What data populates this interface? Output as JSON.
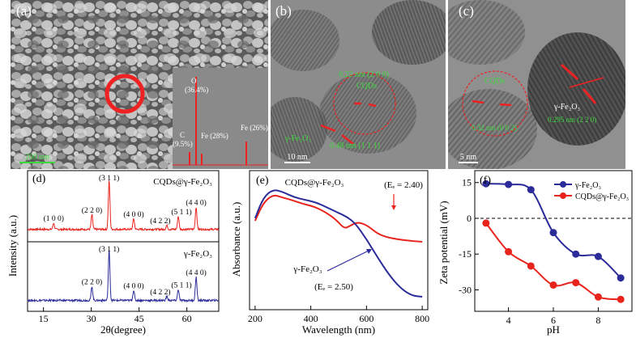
{
  "panels": {
    "a": {
      "label": "(a)",
      "scale_bar": "200 nm",
      "eds": [
        {
          "element": "O",
          "percent": "(36.4%)"
        },
        {
          "element": "C",
          "percent": "(9.5%)"
        },
        {
          "element": "Fe",
          "percent": "(28%)"
        },
        {
          "element": "Fe",
          "percent": "(26%)"
        }
      ]
    },
    "b": {
      "label": "(b)",
      "scale_bar": "10 nm",
      "annotations": [
        "0.22 nm (2 0 0)",
        "CQDs",
        "γ-Fe₂O₃",
        "0.48 nm (1 1 1)"
      ]
    },
    "c": {
      "label": "(c)",
      "scale_bar": "5 nm",
      "annotations": [
        "CQDs",
        "γ-Fe₂O₃",
        "0.295 nm (2 2 0)",
        "0.32 nm (0 0 2)"
      ]
    }
  },
  "chart_data": [
    {
      "panel": "(d)",
      "type": "line",
      "ylabel": "Intensity (a.u.)",
      "xlabel": "2θ(degree)",
      "xticks": [
        15,
        30,
        45,
        60
      ],
      "xlim": [
        10,
        70
      ],
      "series": [
        {
          "name": "CQDs@γ-Fe₂O₃",
          "color": "#e8231c",
          "peaks": [
            {
              "x": 18.2,
              "h": 0.13,
              "label": "(1 0 0)"
            },
            {
              "x": 30.2,
              "h": 0.3,
              "label": "(2 2 0)"
            },
            {
              "x": 35.6,
              "h": 1.0,
              "label": "(3 1 1)"
            },
            {
              "x": 43.3,
              "h": 0.22,
              "label": "(4 0 0)"
            },
            {
              "x": 53.7,
              "h": 0.08,
              "label": "(4 2 2)"
            },
            {
              "x": 57.3,
              "h": 0.27,
              "label": "(5 1 1)"
            },
            {
              "x": 62.9,
              "h": 0.46,
              "label": "(4 4 0)"
            }
          ]
        },
        {
          "name": "γ-Fe₂O₃",
          "color": "#2b2b9a",
          "peaks": [
            {
              "x": 30.2,
              "h": 0.28,
              "label": "(2 2 0)"
            },
            {
              "x": 35.6,
              "h": 1.0,
              "label": "(3 1 1)"
            },
            {
              "x": 43.3,
              "h": 0.2,
              "label": "(4 0 0)"
            },
            {
              "x": 53.7,
              "h": 0.08,
              "label": "(4 2 2)"
            },
            {
              "x": 57.3,
              "h": 0.22,
              "label": "(5 1 1)"
            },
            {
              "x": 62.9,
              "h": 0.47,
              "label": "(4 4 0)"
            }
          ]
        }
      ]
    },
    {
      "panel": "(e)",
      "type": "line",
      "ylabel": "Absorbance (a.u.)",
      "xlabel": "Wavelength (nm)",
      "xticks": [
        200,
        400,
        600,
        800
      ],
      "xlim": [
        180,
        820
      ],
      "series": [
        {
          "name": "CQDs@γ-Fe₂O₃",
          "eg": "(Eₑ = 2.40)",
          "color": "#e8231c",
          "points": [
            [
              200,
              0.66
            ],
            [
              230,
              0.8
            ],
            [
              265,
              0.86
            ],
            [
              295,
              0.84
            ],
            [
              330,
              0.82
            ],
            [
              370,
              0.79
            ],
            [
              410,
              0.77
            ],
            [
              450,
              0.73
            ],
            [
              490,
              0.67
            ],
            [
              520,
              0.6
            ],
            [
              540,
              0.62
            ],
            [
              565,
              0.65
            ],
            [
              600,
              0.63
            ],
            [
              640,
              0.56
            ],
            [
              680,
              0.53
            ],
            [
              740,
              0.51
            ],
            [
              800,
              0.5
            ]
          ]
        },
        {
          "name": "γ-Fe₂O₃",
          "eg": "(Eₑ = 2.50)",
          "color": "#2b2b9a",
          "points": [
            [
              200,
              0.68
            ],
            [
              230,
              0.84
            ],
            [
              265,
              0.9
            ],
            [
              300,
              0.88
            ],
            [
              340,
              0.84
            ],
            [
              380,
              0.82
            ],
            [
              420,
              0.8
            ],
            [
              460,
              0.76
            ],
            [
              500,
              0.72
            ],
            [
              530,
              0.69
            ],
            [
              560,
              0.64
            ],
            [
              600,
              0.52
            ],
            [
              640,
              0.38
            ],
            [
              680,
              0.25
            ],
            [
              720,
              0.15
            ],
            [
              760,
              0.09
            ],
            [
              800,
              0.08
            ]
          ]
        }
      ]
    },
    {
      "panel": "(f)",
      "type": "line",
      "ylabel": "Zeta potential (mV)",
      "xlabel": "pH",
      "xticks": [
        4,
        6,
        8
      ],
      "yticks": [
        15,
        0,
        -15,
        -30
      ],
      "xlim": [
        2.5,
        9.5
      ],
      "ylim": [
        -39,
        20
      ],
      "series": [
        {
          "name": "γ-Fe₂O₃",
          "color": "#2b2b9a",
          "points": [
            [
              3,
              14.5
            ],
            [
              4,
              14.2
            ],
            [
              5,
              12
            ],
            [
              6,
              -6
            ],
            [
              7,
              -15
            ],
            [
              8,
              -16
            ],
            [
              9,
              -25
            ]
          ]
        },
        {
          "name": "CQDs@γ-Fe₂O₃",
          "color": "#e8231c",
          "points": [
            [
              3,
              -2
            ],
            [
              4,
              -14
            ],
            [
              5,
              -20
            ],
            [
              6,
              -28
            ],
            [
              7,
              -27
            ],
            [
              8,
              -33
            ],
            [
              9,
              -34
            ]
          ]
        }
      ]
    }
  ]
}
